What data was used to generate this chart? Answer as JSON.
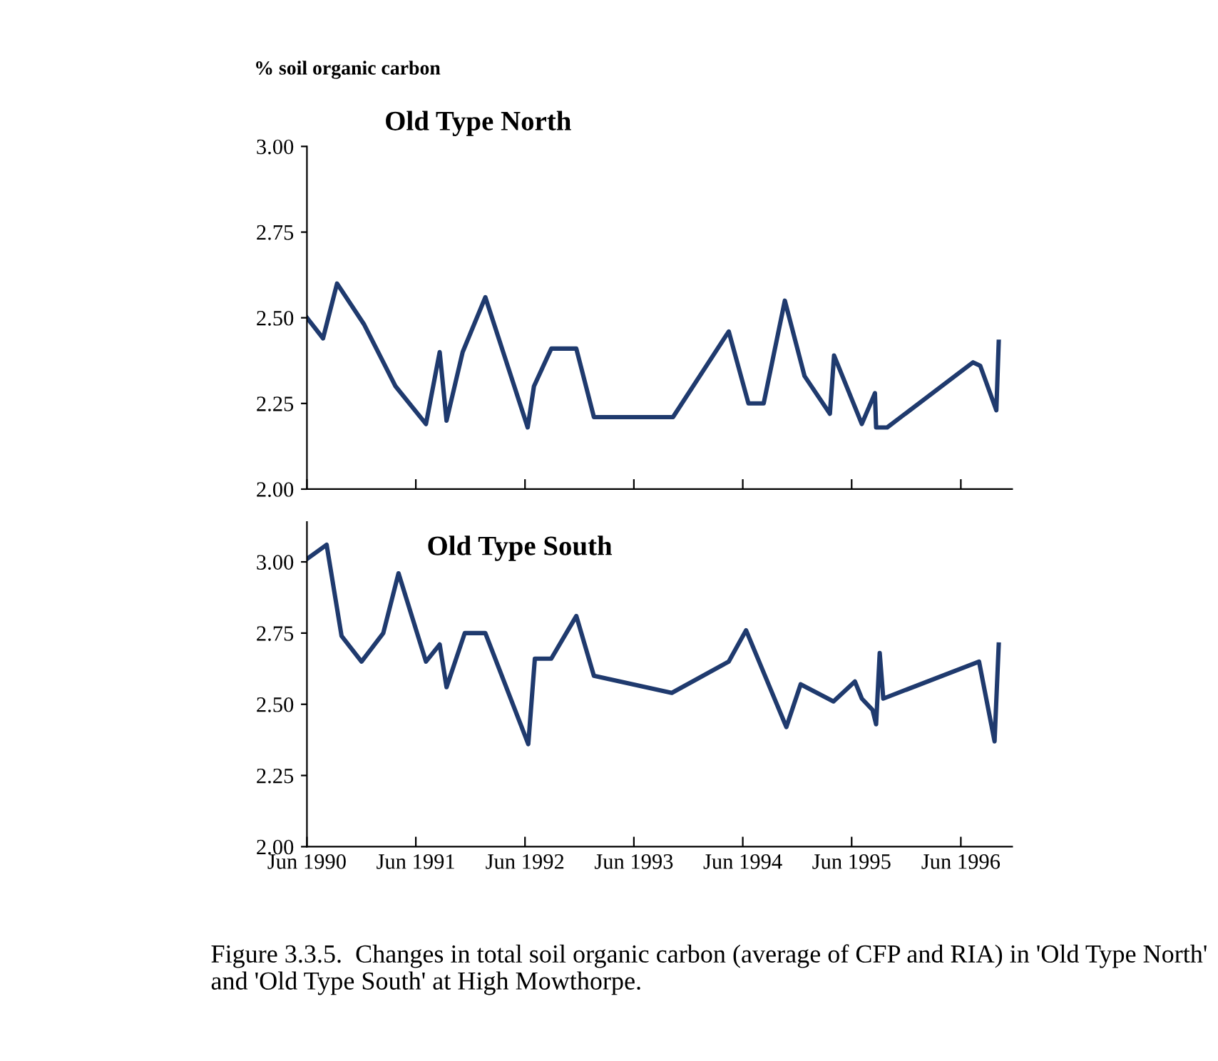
{
  "chart_data": [
    {
      "type": "line",
      "title": "Old Type North",
      "ylabel": "% soil organic carbon",
      "tick_labels": "y",
      "grid": false,
      "legend": false,
      "x": [
        "1990-06-01",
        "1990-07-25",
        "1990-09-10",
        "1990-12-10",
        "1991-03-25",
        "1991-07-05",
        "1991-08-20",
        "1991-09-12",
        "1991-11-05",
        "1992-01-20",
        "1992-06-10",
        "1992-07-01",
        "1992-08-28",
        "1992-11-20",
        "1993-01-18",
        "1993-10-10",
        "1994-04-15",
        "1994-06-20",
        "1994-08-10",
        "1994-10-20",
        "1994-12-25",
        "1995-03-20",
        "1995-04-03",
        "1995-07-05",
        "1995-08-18",
        "1995-08-22",
        "1995-09-28",
        "1996-07-12",
        "1996-08-05",
        "1996-09-28",
        "1996-10-06"
      ],
      "series": [
        {
          "color": "#1f3a6e",
          "values": [
            2.5,
            2.44,
            2.6,
            2.48,
            2.3,
            2.19,
            2.4,
            2.2,
            2.4,
            2.56,
            2.18,
            2.3,
            2.41,
            2.41,
            2.21,
            2.21,
            2.46,
            2.25,
            2.25,
            2.55,
            2.33,
            2.22,
            2.39,
            2.19,
            2.28,
            2.18,
            2.18,
            2.37,
            2.36,
            2.23,
            2.43
          ]
        }
      ],
      "xlim": [
        "1990-06-01",
        "1996-11-20"
      ],
      "xticks": [
        {
          "value": "1990-06-01",
          "label": null
        },
        {
          "value": "1991-06-01",
          "label": null
        },
        {
          "value": "1992-06-01",
          "label": null
        },
        {
          "value": "1993-06-01",
          "label": null
        },
        {
          "value": "1994-06-01",
          "label": null
        },
        {
          "value": "1995-06-01",
          "label": null
        },
        {
          "value": "1996-06-01",
          "label": null
        }
      ],
      "ylim": [
        2.0,
        3.0
      ],
      "yticks": [
        {
          "value": 2.0,
          "label": "2.00"
        },
        {
          "value": 2.25,
          "label": "2.25"
        },
        {
          "value": 2.5,
          "label": "2.50"
        },
        {
          "value": 2.75,
          "label": "2.75"
        },
        {
          "value": 3.0,
          "label": "3.00"
        }
      ]
    },
    {
      "type": "line",
      "title": "Old Type South",
      "grid": false,
      "legend": false,
      "x": [
        "1990-06-01",
        "1990-08-06",
        "1990-09-25",
        "1990-12-01",
        "1991-02-12",
        "1991-04-04",
        "1991-07-05",
        "1991-08-20",
        "1991-09-12",
        "1991-11-12",
        "1992-01-20",
        "1992-06-12",
        "1992-07-04",
        "1992-08-28",
        "1992-11-20",
        "1993-01-18",
        "1993-10-06",
        "1994-04-15",
        "1994-06-12",
        "1994-10-25",
        "1994-12-12",
        "1995-04-01",
        "1995-06-12",
        "1995-07-05",
        "1995-08-10",
        "1995-08-22",
        "1995-09-03",
        "1995-09-15",
        "1996-08-01",
        "1996-09-22",
        "1996-10-06"
      ],
      "series": [
        {
          "color": "#1f3a6e",
          "values": [
            3.01,
            3.06,
            2.74,
            2.65,
            2.75,
            2.96,
            2.65,
            2.71,
            2.56,
            2.75,
            2.75,
            2.36,
            2.66,
            2.66,
            2.81,
            2.6,
            2.54,
            2.65,
            2.76,
            2.42,
            2.57,
            2.51,
            2.58,
            2.52,
            2.48,
            2.43,
            2.68,
            2.52,
            2.65,
            2.37,
            2.71
          ]
        }
      ],
      "xlim": [
        "1990-06-01",
        "1996-11-20"
      ],
      "xticks": [
        {
          "value": "1990-06-01",
          "label": "Jun 1990"
        },
        {
          "value": "1991-06-01",
          "label": "Jun 1991"
        },
        {
          "value": "1992-06-01",
          "label": "Jun 1992"
        },
        {
          "value": "1993-06-01",
          "label": "Jun 1993"
        },
        {
          "value": "1994-06-01",
          "label": "Jun 1994"
        },
        {
          "value": "1995-06-01",
          "label": "Jun 1995"
        },
        {
          "value": "1996-06-01",
          "label": "Jun 1996"
        }
      ],
      "ylim": [
        2.0,
        3.14
      ],
      "yticks": [
        {
          "value": 2.0,
          "label": "2.00"
        },
        {
          "value": 2.25,
          "label": "2.25"
        },
        {
          "value": 2.5,
          "label": "2.50"
        },
        {
          "value": 2.75,
          "label": "2.75"
        },
        {
          "value": 3.0,
          "label": "3.00"
        }
      ],
      "annotations": [
        "Figure 3.3.5.  Changes in total soil organic carbon (average of CFP and RIA) in 'Old Type North' and 'Old Type South' at High Mowthorpe."
      ]
    }
  ]
}
